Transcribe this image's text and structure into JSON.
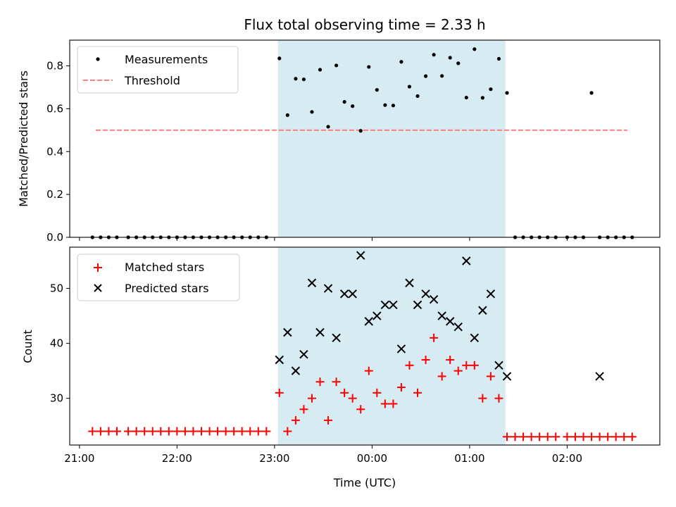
{
  "chart_data": [
    {
      "type": "scatter",
      "title": "Flux total observing time = 2.33 h",
      "xlabel": "",
      "ylabel": "Matched/Predicted stars",
      "ylim": [
        0,
        0.92
      ],
      "yticks": [
        "0.0",
        "0.2",
        "0.4",
        "0.6",
        "0.8"
      ],
      "yticks_values": [
        0,
        0.2,
        0.4,
        0.6,
        0.8
      ],
      "xlim": [
        "20:54",
        "02:57"
      ],
      "legend_position": "upper-left",
      "shaded_span": [
        "23:02",
        "01:22"
      ],
      "series": [
        {
          "name": "Measurements",
          "marker": "dot",
          "color": "#000000",
          "x": [
            "21:08",
            "21:13",
            "21:18",
            "21:23",
            "21:30",
            "21:35",
            "21:40",
            "21:45",
            "21:50",
            "21:55",
            "22:00",
            "22:05",
            "22:10",
            "22:15",
            "22:20",
            "22:25",
            "22:30",
            "22:35",
            "22:40",
            "22:45",
            "22:50",
            "22:55",
            "23:03",
            "23:08",
            "23:13",
            "23:18",
            "23:23",
            "23:28",
            "23:33",
            "23:38",
            "23:43",
            "23:48",
            "23:53",
            "23:58",
            "00:03",
            "00:08",
            "00:13",
            "00:18",
            "00:23",
            "00:28",
            "00:33",
            "00:38",
            "00:43",
            "00:48",
            "00:53",
            "00:58",
            "01:03",
            "01:08",
            "01:13",
            "01:18",
            "01:23",
            "01:28",
            "01:33",
            "01:38",
            "01:43",
            "01:48",
            "01:53",
            "02:00",
            "02:05",
            "02:10",
            "02:15",
            "02:20",
            "02:25",
            "02:30",
            "02:35",
            "02:40"
          ],
          "y": [
            0,
            0,
            0,
            0,
            0,
            0,
            0,
            0,
            0,
            0,
            0,
            0,
            0,
            0,
            0,
            0,
            0,
            0,
            0,
            0,
            0,
            0,
            0.835,
            0.57,
            0.74,
            0.737,
            0.585,
            0.782,
            0.516,
            0.802,
            0.632,
            0.612,
            0.497,
            0.795,
            0.688,
            0.617,
            0.615,
            0.819,
            0.703,
            0.659,
            0.752,
            0.852,
            0.753,
            0.838,
            0.812,
            0.652,
            0.878,
            0.651,
            0.691,
            0.833,
            0.674,
            0,
            0,
            0,
            0,
            0,
            0,
            0,
            0,
            0,
            0.674,
            0,
            0,
            0,
            0,
            0
          ]
        },
        {
          "name": "Threshold",
          "marker": "dashed-line",
          "color": "#ff7f7f",
          "x": [
            "21:10",
            "02:37"
          ],
          "y": [
            0.5,
            0.5
          ]
        }
      ]
    },
    {
      "type": "scatter",
      "title": "",
      "xlabel": "Time (UTC)",
      "ylabel": "Count",
      "ylim": [
        21.5,
        57.5
      ],
      "yticks": [
        "30",
        "40",
        "50"
      ],
      "yticks_values": [
        30,
        40,
        50
      ],
      "xlim": [
        "20:54",
        "02:57"
      ],
      "xticks": [
        "21:00",
        "22:00",
        "23:00",
        "00:00",
        "01:00",
        "02:00"
      ],
      "legend_position": "upper-left",
      "shaded_span": [
        "23:02",
        "01:22"
      ],
      "series": [
        {
          "name": "Matched stars",
          "marker": "plus",
          "color": "#ff0000",
          "x": [
            "21:08",
            "21:13",
            "21:18",
            "21:23",
            "21:30",
            "21:35",
            "21:40",
            "21:45",
            "21:50",
            "21:55",
            "22:00",
            "22:05",
            "22:10",
            "22:15",
            "22:20",
            "22:25",
            "22:30",
            "22:35",
            "22:40",
            "22:45",
            "22:50",
            "22:55",
            "23:03",
            "23:08",
            "23:13",
            "23:18",
            "23:23",
            "23:28",
            "23:33",
            "23:38",
            "23:43",
            "23:48",
            "23:53",
            "23:58",
            "00:03",
            "00:08",
            "00:13",
            "00:18",
            "00:23",
            "00:28",
            "00:33",
            "00:38",
            "00:43",
            "00:48",
            "00:53",
            "00:58",
            "01:03",
            "01:08",
            "01:13",
            "01:18",
            "01:23",
            "01:28",
            "01:33",
            "01:38",
            "01:43",
            "01:48",
            "01:53",
            "02:00",
            "02:05",
            "02:10",
            "02:15",
            "02:20",
            "02:25",
            "02:30",
            "02:35",
            "02:40"
          ],
          "y": [
            24,
            24,
            24,
            24,
            24,
            24,
            24,
            24,
            24,
            24,
            24,
            24,
            24,
            24,
            24,
            24,
            24,
            24,
            24,
            24,
            24,
            24,
            31,
            24,
            26,
            28,
            30,
            33,
            26,
            33,
            31,
            30,
            28,
            35,
            31,
            29,
            29,
            32,
            36,
            31,
            37,
            41,
            34,
            37,
            35,
            36,
            36,
            30,
            34,
            30,
            23,
            23,
            23,
            23,
            23,
            23,
            23,
            23,
            23,
            23,
            23,
            23,
            23,
            23,
            23,
            23
          ]
        },
        {
          "name": "Predicted stars",
          "marker": "x",
          "color": "#000000",
          "x": [
            "23:03",
            "23:08",
            "23:13",
            "23:18",
            "23:23",
            "23:28",
            "23:33",
            "23:38",
            "23:43",
            "23:48",
            "23:53",
            "23:58",
            "00:03",
            "00:08",
            "00:13",
            "00:18",
            "00:23",
            "00:28",
            "00:33",
            "00:38",
            "00:43",
            "00:48",
            "00:53",
            "00:58",
            "01:03",
            "01:08",
            "01:13",
            "01:18",
            "01:23",
            "02:20"
          ],
          "y": [
            37,
            42,
            35,
            38,
            51,
            42,
            50,
            41,
            49,
            49,
            56,
            44,
            45,
            47,
            47,
            39,
            51,
            47,
            49,
            48,
            45,
            44,
            43,
            55,
            41,
            46,
            49,
            36,
            34,
            34
          ]
        }
      ]
    }
  ]
}
